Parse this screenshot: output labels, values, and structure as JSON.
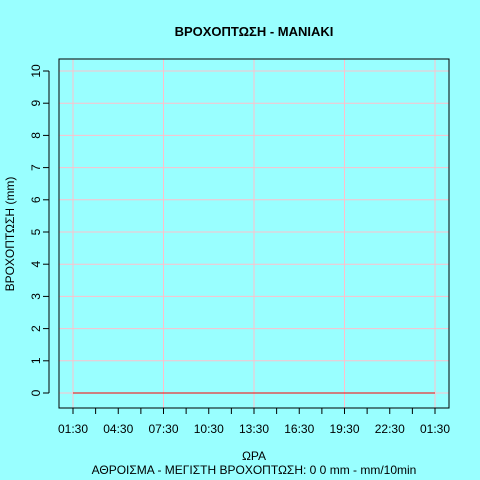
{
  "chart_data": {
    "type": "line",
    "title": "ΒΡΟΧΟΠΤΩΣΗ - ΜΑΝΙΑΚΙ",
    "xlabel": "ΩΡΑ",
    "ylabel": "ΒΡΟΧΟΠΤΩΣΗ (mm)",
    "footer": "ΑΘΡΟΙΣΜΑ - ΜΕΓΙΣΤΗ ΒΡΟΧΟΠΤΩΣΗ: 0 0 mm - mm/10min",
    "x_tick_labels": [
      "01:30",
      "04:30",
      "07:30",
      "10:30",
      "13:30",
      "16:30",
      "19:30",
      "22:30",
      "01:30"
    ],
    "y_ticks": [
      0,
      1,
      2,
      3,
      4,
      5,
      6,
      7,
      8,
      9,
      10
    ],
    "ylim": [
      0,
      10
    ],
    "grid": true,
    "series": [
      {
        "color": "#FF0000",
        "x": [
          0,
          24
        ],
        "values": [
          0,
          0
        ]
      }
    ],
    "colors": {
      "background": "#99FFFF",
      "grid": "#FFC0CB",
      "axis": "#000000"
    }
  }
}
